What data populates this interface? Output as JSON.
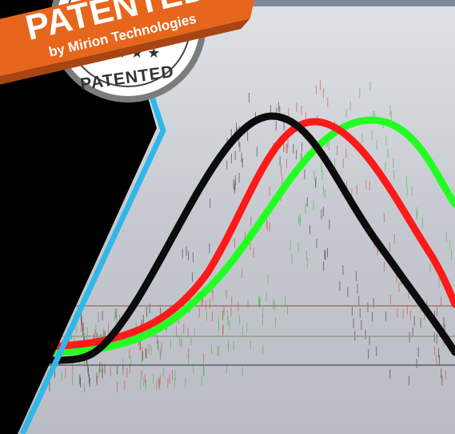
{
  "badge": {
    "ribbon_title": "PATENTED",
    "ribbon_subtitle": "by Mirion Technologies",
    "seal_text": "PATENTED"
  }
}
